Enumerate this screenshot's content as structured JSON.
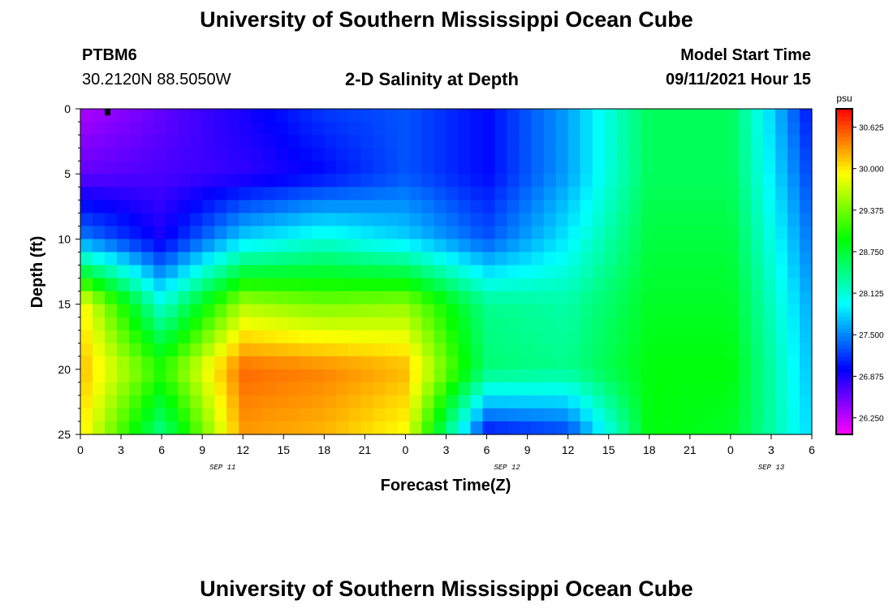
{
  "header": {
    "title": "University of Southern Mississippi Ocean Cube",
    "station": "PTBM6",
    "coords": "30.2120N  88.5050W",
    "plot_title": "2-D Salinity at Depth",
    "model_label": "Model Start Time",
    "model_time": "09/11/2021 Hour 15"
  },
  "footer": {
    "title": "University of Southern Mississippi Ocean Cube"
  },
  "chart_data": {
    "type": "heatmap",
    "title": "2-D Salinity at Depth",
    "xlabel": "Forecast Time(Z)",
    "ylabel": "Depth (ft)",
    "x_tick_labels": [
      "0",
      "3",
      "6",
      "9",
      "12",
      "15",
      "18",
      "21",
      "0",
      "3",
      "6",
      "9",
      "12",
      "15",
      "18",
      "21",
      "0",
      "3",
      "6"
    ],
    "date_labels": [
      "SEP 11",
      "SEP 12",
      "SEP 13"
    ],
    "y_ticks": [
      0,
      5,
      10,
      15,
      20,
      25
    ],
    "ylim": [
      25,
      0
    ],
    "xlim_hours": [
      0,
      54
    ],
    "colorbar": {
      "unit": "psu",
      "tick_labels": [
        "30.625",
        "30.000",
        "29.375",
        "28.750",
        "28.125",
        "27.500",
        "26.875",
        "26.250"
      ],
      "range": [
        26.0,
        30.9
      ]
    },
    "depths_ft": [
      0,
      5,
      10,
      15,
      20,
      25
    ],
    "times_hours": [
      0,
      6,
      12,
      18,
      24,
      30,
      36,
      42,
      48,
      54
    ],
    "salinity_psu": [
      [
        26.3,
        26.6,
        26.9,
        27.2,
        27.3,
        27.0,
        27.6,
        28.6,
        28.6,
        27.0
      ],
      [
        26.6,
        26.7,
        26.8,
        27.0,
        27.3,
        27.0,
        27.6,
        28.6,
        28.6,
        27.2
      ],
      [
        27.5,
        26.9,
        27.8,
        28.1,
        27.8,
        27.3,
        27.9,
        28.7,
        28.7,
        27.4
      ],
      [
        30.0,
        28.1,
        29.6,
        29.4,
        29.5,
        28.4,
        28.3,
        28.8,
        28.8,
        27.6
      ],
      [
        30.2,
        29.1,
        30.5,
        30.4,
        30.2,
        28.5,
        28.4,
        28.9,
        28.9,
        27.7
      ],
      [
        30.0,
        28.4,
        30.3,
        30.2,
        29.9,
        27.0,
        27.2,
        28.9,
        28.8,
        27.8
      ]
    ]
  }
}
